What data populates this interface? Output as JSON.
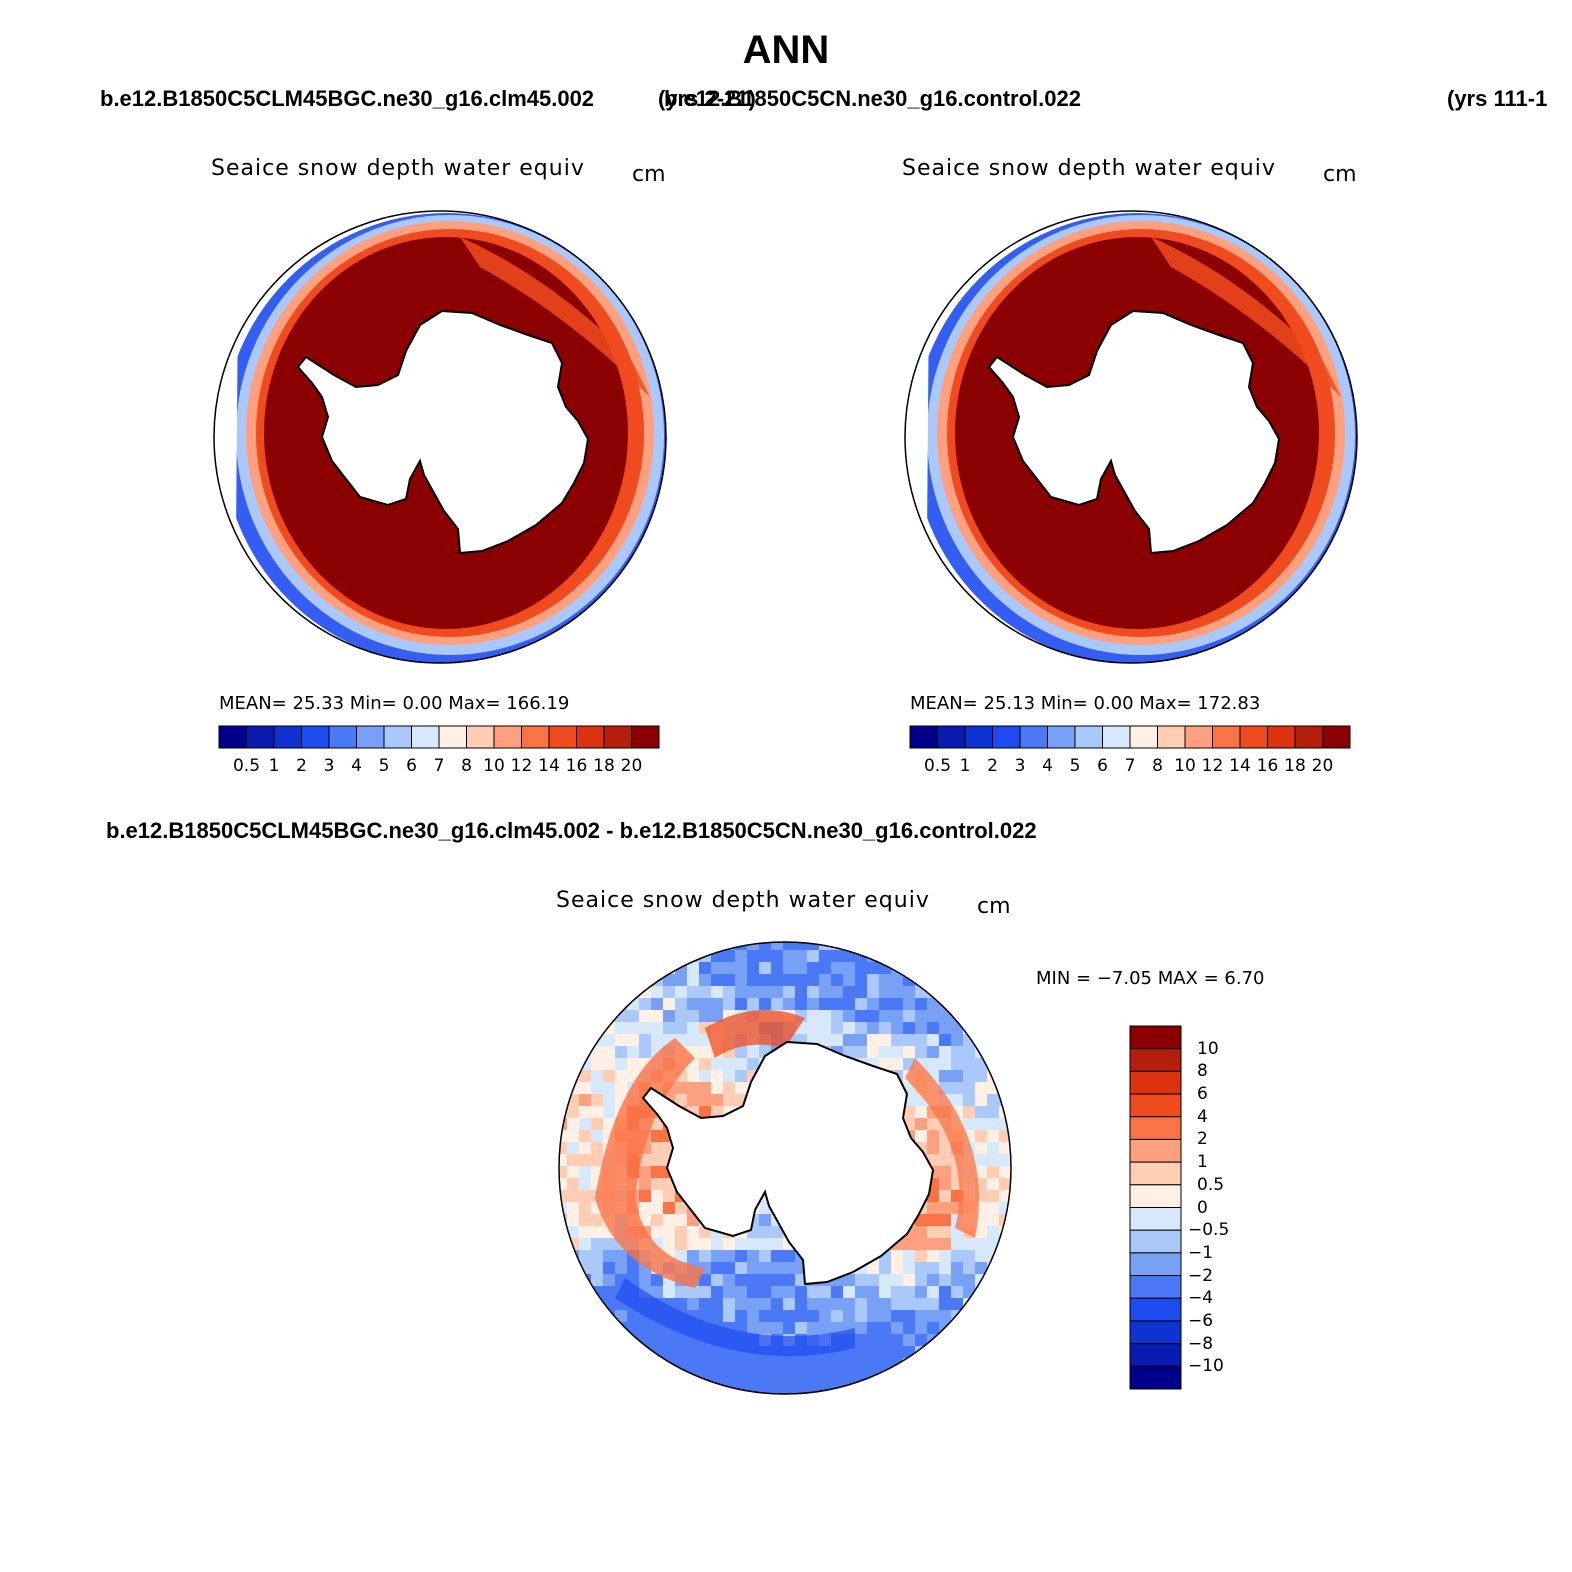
{
  "title": "ANN",
  "header": {
    "case_a": "b.e12.B1850C5CLM45BGC.ne30_g16.clm45.002",
    "years_a": "(yrs 2-21)",
    "case_b": "b.e12.B1850C5CN.ne30_g16.control.022",
    "years_b": "(yrs 111-1"
  },
  "diff_title": "b.e12.B1850C5CLM45BGC.ne30_g16.clm45.002 - b.e12.B1850C5CN.ne30_g16.control.022",
  "panels": [
    {
      "variable": "Seaice snow depth water equiv",
      "units": "cm",
      "stats": "MEAN=   25.33   Min=     0.00   Max=  166.19"
    },
    {
      "variable": "Seaice snow depth water equiv",
      "units": "cm",
      "stats": "MEAN=   25.13   Min=     0.00   Max=  172.83"
    },
    {
      "variable": "Seaice snow depth water equiv",
      "units": "cm",
      "stats": "MIN =   −7.05 MAX =     6.70"
    }
  ],
  "colorbar_abs": {
    "colors": [
      "#00008b",
      "#0a1cb0",
      "#0f32d2",
      "#1e4bf0",
      "#4b78f5",
      "#78a0f5",
      "#aac8fa",
      "#d7e8fa",
      "#fff0e6",
      "#ffcdb4",
      "#fca080",
      "#fa7346",
      "#f04b1e",
      "#dc320f",
      "#b41e0a",
      "#8b0000"
    ],
    "labels": [
      "0.5",
      "1",
      "2",
      "3",
      "4",
      "5",
      "6",
      "7",
      "8",
      "10",
      "12",
      "14",
      "16",
      "18",
      "20"
    ]
  },
  "colorbar_diff": {
    "colors": [
      "#8b0000",
      "#b41e0a",
      "#dc320f",
      "#f04b1e",
      "#fa7346",
      "#fca080",
      "#ffcdb4",
      "#fff0e6",
      "#d7e8fa",
      "#aac8fa",
      "#78a0f5",
      "#4b78f5",
      "#1e4bf0",
      "#0f32d2",
      "#0a1cb0",
      "#00008b"
    ],
    "labels": [
      "10",
      "8",
      "6",
      "4",
      "2",
      "1",
      "0.5",
      "0",
      "−0.5",
      "−1",
      "−2",
      "−4",
      "−6",
      "−8",
      "−10"
    ]
  }
}
